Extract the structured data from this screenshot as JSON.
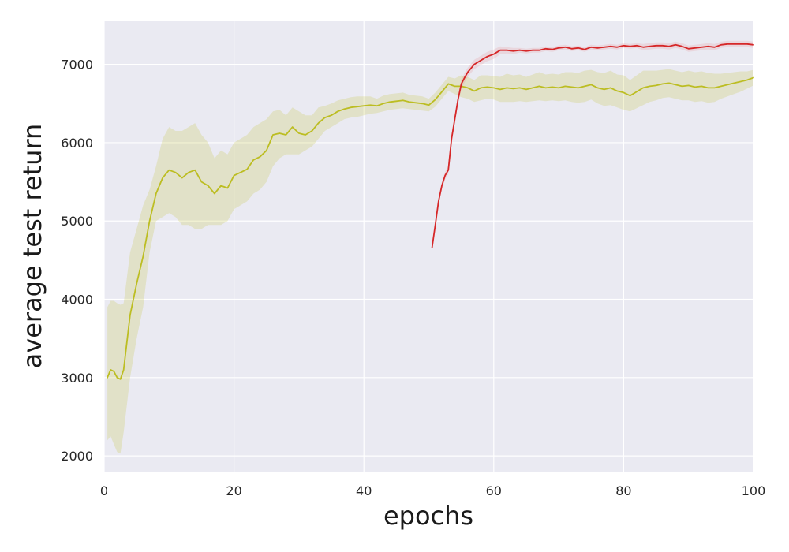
{
  "chart_data": {
    "type": "line",
    "title": "",
    "xlabel": "epochs",
    "ylabel": "average test return",
    "xlim": [
      0,
      100
    ],
    "ylim": [
      1800,
      7560
    ],
    "x_ticks": [
      "0",
      "20",
      "40",
      "60",
      "80",
      "100"
    ],
    "y_ticks": [
      "2000",
      "3000",
      "4000",
      "5000",
      "6000",
      "7000"
    ],
    "grid": true,
    "legend": "none",
    "background_color": "#eaeaf2",
    "grid_color": "#ffffff",
    "series": [
      {
        "color": "#bcbd22",
        "band_color": "#bcbd22",
        "x": [
          0.5,
          1,
          1.5,
          2,
          2.5,
          3,
          4,
          5,
          6,
          7,
          8,
          9,
          10,
          11,
          12,
          13,
          14,
          15,
          16,
          17,
          18,
          19,
          20,
          21,
          22,
          23,
          24,
          25,
          26,
          27,
          28,
          29,
          30,
          31,
          32,
          33,
          34,
          35,
          36,
          37,
          38,
          39,
          40,
          41,
          42,
          43,
          44,
          45,
          46,
          47,
          48,
          49,
          50,
          51,
          52,
          53,
          54,
          55,
          56,
          57,
          58,
          59,
          60,
          61,
          62,
          63,
          64,
          65,
          66,
          67,
          68,
          69,
          70,
          71,
          72,
          73,
          74,
          75,
          76,
          77,
          78,
          79,
          80,
          81,
          82,
          83,
          84,
          85,
          86,
          87,
          88,
          89,
          90,
          91,
          92,
          93,
          94,
          95,
          96,
          97,
          98,
          99,
          100
        ],
        "y": [
          3000,
          3100,
          3080,
          3000,
          2980,
          3100,
          3800,
          4200,
          4550,
          5000,
          5350,
          5550,
          5650,
          5620,
          5550,
          5620,
          5650,
          5500,
          5450,
          5350,
          5450,
          5420,
          5580,
          5620,
          5660,
          5780,
          5820,
          5900,
          6100,
          6120,
          6100,
          6200,
          6120,
          6100,
          6150,
          6250,
          6320,
          6350,
          6400,
          6430,
          6450,
          6460,
          6470,
          6480,
          6470,
          6500,
          6520,
          6530,
          6540,
          6520,
          6510,
          6500,
          6480,
          6550,
          6650,
          6750,
          6720,
          6720,
          6700,
          6660,
          6700,
          6710,
          6700,
          6680,
          6700,
          6690,
          6700,
          6680,
          6700,
          6720,
          6700,
          6710,
          6700,
          6720,
          6710,
          6700,
          6720,
          6740,
          6700,
          6680,
          6700,
          6660,
          6640,
          6600,
          6650,
          6700,
          6720,
          6730,
          6750,
          6760,
          6740,
          6720,
          6730,
          6710,
          6720,
          6700,
          6700,
          6720,
          6740,
          6760,
          6780,
          6800,
          6830
        ],
        "lower": [
          2200,
          2250,
          2150,
          2050,
          2030,
          2300,
          3000,
          3500,
          3900,
          4600,
          5000,
          5050,
          5100,
          5050,
          4950,
          4950,
          4900,
          4900,
          4950,
          4950,
          4950,
          5000,
          5150,
          5200,
          5250,
          5350,
          5400,
          5500,
          5700,
          5800,
          5850,
          5850,
          5850,
          5900,
          5950,
          6050,
          6150,
          6200,
          6250,
          6300,
          6320,
          6330,
          6350,
          6370,
          6380,
          6400,
          6420,
          6430,
          6440,
          6430,
          6420,
          6410,
          6400,
          6460,
          6560,
          6660,
          6620,
          6580,
          6560,
          6520,
          6540,
          6560,
          6550,
          6520,
          6520,
          6520,
          6530,
          6520,
          6530,
          6540,
          6530,
          6540,
          6530,
          6540,
          6520,
          6510,
          6520,
          6550,
          6500,
          6470,
          6480,
          6450,
          6420,
          6400,
          6440,
          6480,
          6520,
          6540,
          6570,
          6580,
          6560,
          6540,
          6540,
          6520,
          6530,
          6510,
          6520,
          6560,
          6590,
          6620,
          6650,
          6690,
          6730
        ],
        "upper": [
          3900,
          3980,
          3980,
          3950,
          3930,
          3950,
          4600,
          4900,
          5200,
          5400,
          5700,
          6050,
          6200,
          6150,
          6150,
          6200,
          6250,
          6100,
          6000,
          5800,
          5900,
          5850,
          6000,
          6050,
          6100,
          6200,
          6250,
          6300,
          6400,
          6420,
          6350,
          6450,
          6400,
          6350,
          6350,
          6450,
          6470,
          6500,
          6540,
          6560,
          6580,
          6590,
          6590,
          6590,
          6560,
          6600,
          6620,
          6630,
          6640,
          6610,
          6600,
          6590,
          6560,
          6640,
          6740,
          6840,
          6820,
          6860,
          6840,
          6800,
          6860,
          6860,
          6850,
          6840,
          6880,
          6860,
          6870,
          6840,
          6870,
          6900,
          6870,
          6880,
          6870,
          6900,
          6900,
          6890,
          6920,
          6930,
          6900,
          6890,
          6920,
          6870,
          6860,
          6800,
          6860,
          6920,
          6920,
          6920,
          6930,
          6940,
          6920,
          6900,
          6920,
          6900,
          6910,
          6890,
          6880,
          6880,
          6890,
          6900,
          6910,
          6910,
          6930
        ]
      },
      {
        "color": "#d62728",
        "band_color": "#e8888a",
        "x": [
          50.5,
          51,
          51.5,
          52,
          52.5,
          53,
          53.5,
          54,
          54.5,
          55,
          55.5,
          56,
          56.5,
          57,
          58,
          59,
          60,
          61,
          62,
          63,
          64,
          65,
          66,
          67,
          68,
          69,
          70,
          71,
          72,
          73,
          74,
          75,
          76,
          77,
          78,
          79,
          80,
          81,
          82,
          83,
          84,
          85,
          86,
          87,
          88,
          89,
          90,
          91,
          92,
          93,
          94,
          95,
          96,
          97,
          98,
          99,
          100
        ],
        "y": [
          4660,
          4950,
          5250,
          5450,
          5580,
          5650,
          6050,
          6300,
          6550,
          6750,
          6830,
          6900,
          6950,
          7000,
          7050,
          7100,
          7130,
          7180,
          7180,
          7170,
          7180,
          7170,
          7180,
          7180,
          7200,
          7190,
          7210,
          7220,
          7200,
          7210,
          7190,
          7220,
          7210,
          7220,
          7230,
          7220,
          7240,
          7230,
          7240,
          7220,
          7230,
          7240,
          7240,
          7230,
          7250,
          7230,
          7200,
          7210,
          7220,
          7230,
          7220,
          7250,
          7260,
          7260,
          7260,
          7260,
          7250
        ],
        "lower": [
          4640,
          4920,
          5210,
          5400,
          5530,
          5600,
          5990,
          6240,
          6490,
          6690,
          6770,
          6840,
          6890,
          6940,
          6990,
          7040,
          7070,
          7130,
          7140,
          7130,
          7150,
          7140,
          7150,
          7150,
          7170,
          7160,
          7180,
          7190,
          7170,
          7180,
          7160,
          7190,
          7180,
          7190,
          7200,
          7190,
          7210,
          7200,
          7210,
          7180,
          7190,
          7200,
          7200,
          7190,
          7210,
          7190,
          7160,
          7170,
          7180,
          7190,
          7180,
          7210,
          7220,
          7220,
          7220,
          7220,
          7210
        ],
        "upper": [
          4680,
          4980,
          5290,
          5500,
          5630,
          5700,
          6110,
          6360,
          6610,
          6810,
          6890,
          6960,
          7010,
          7060,
          7110,
          7160,
          7190,
          7230,
          7220,
          7210,
          7210,
          7200,
          7210,
          7210,
          7230,
          7220,
          7240,
          7250,
          7230,
          7240,
          7220,
          7250,
          7240,
          7250,
          7260,
          7250,
          7270,
          7260,
          7270,
          7260,
          7270,
          7280,
          7280,
          7270,
          7290,
          7270,
          7240,
          7250,
          7260,
          7270,
          7260,
          7290,
          7300,
          7300,
          7300,
          7300,
          7290
        ]
      }
    ]
  }
}
